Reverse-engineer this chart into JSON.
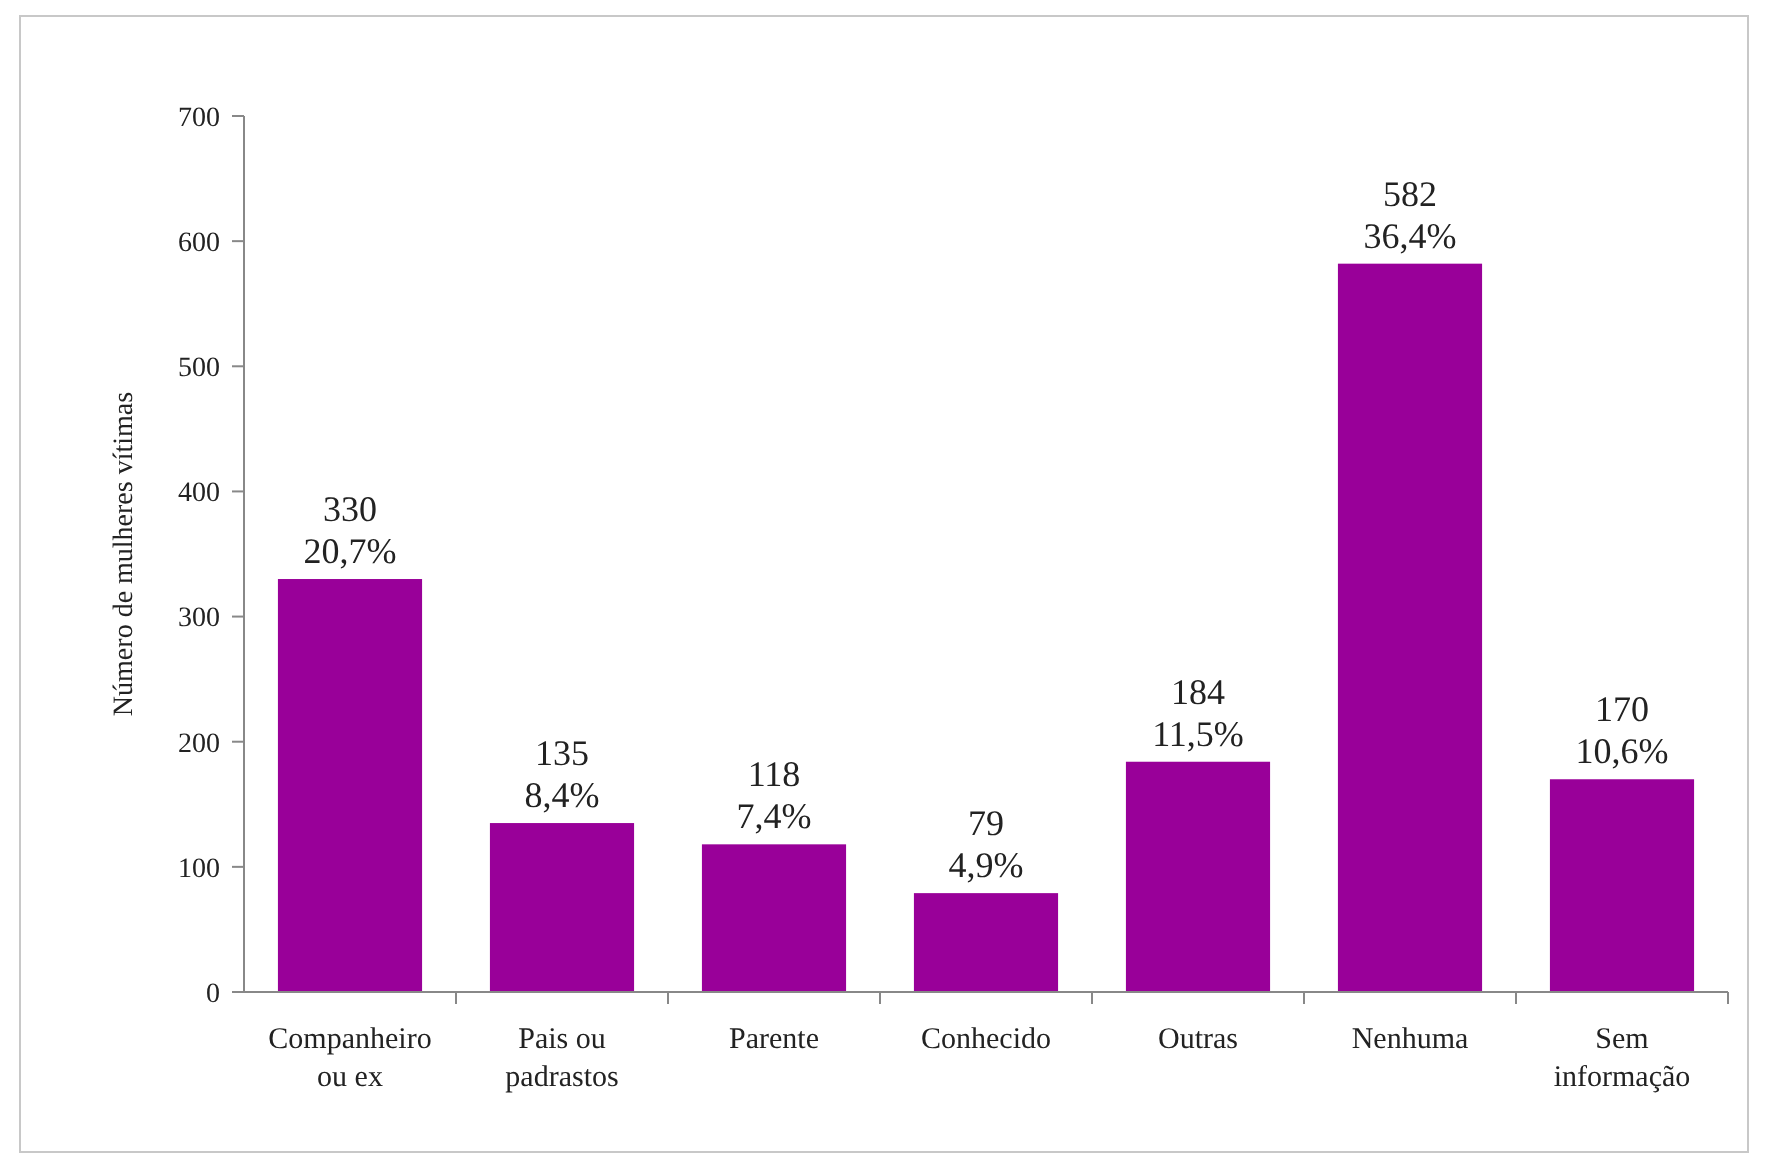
{
  "chart_data": {
    "type": "bar",
    "ylabel": "Número de mulheres vítimas",
    "categories": [
      "Companheiro\nou ex",
      "Pais ou\npadrastos",
      "Parente",
      "Conhecido",
      "Outras",
      "Nenhuma",
      "Sem\ninformação"
    ],
    "values": [
      330,
      135,
      118,
      79,
      184,
      582,
      170
    ],
    "value_labels": [
      "330\n20,7%",
      "135\n8,4%",
      "118\n7,4%",
      "79\n4,9%",
      "184\n11,5%",
      "582\n36,4%",
      "170\n10,6%"
    ],
    "color": "#990099",
    "ylim": [
      0,
      700
    ],
    "yticks": [
      0,
      100,
      200,
      300,
      400,
      500,
      600,
      700
    ],
    "grid": false
  }
}
